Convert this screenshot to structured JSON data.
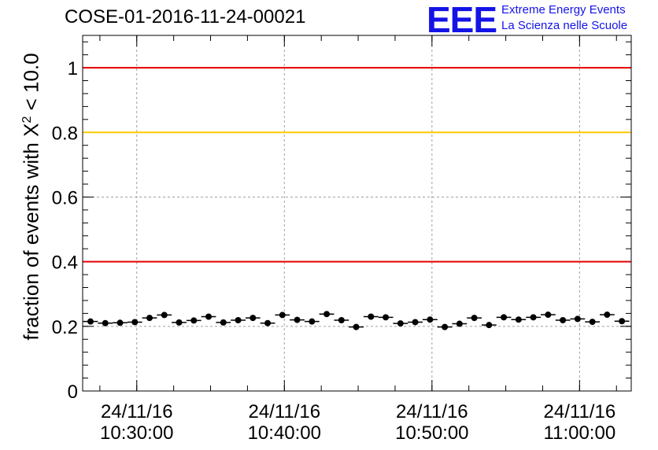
{
  "title": "COSE-01-2016-11-24-00021",
  "logo": {
    "mark": "EEE",
    "line1": "Extreme Energy Events",
    "line2": "La Scienza nelle Scuole"
  },
  "chart_data": {
    "type": "scatter",
    "ylabel": {
      "pre": "fraction of events with X",
      "sup": "2",
      "post": " < 10.0"
    },
    "ylim": [
      0,
      1.1
    ],
    "yticks": [
      0,
      0.2,
      0.4,
      0.6,
      0.8,
      1
    ],
    "ytick_labels": [
      "0",
      "0.2",
      "0.4",
      "0.6",
      "0.8",
      "1"
    ],
    "xlim": [
      "2016-11-24 10:26:20",
      "2016-11-24 11:03:30"
    ],
    "xticks": [
      {
        "time": "2016-11-24 10:30:00",
        "line1": "24/11/16",
        "line2": "10:30:00"
      },
      {
        "time": "2016-11-24 10:40:00",
        "line1": "24/11/16",
        "line2": "10:40:00"
      },
      {
        "time": "2016-11-24 10:50:00",
        "line1": "24/11/16",
        "line2": "10:50:00"
      },
      {
        "time": "2016-11-24 11:00:00",
        "line1": "24/11/16",
        "line2": "11:00:00"
      }
    ],
    "grid": true,
    "reference_lines": [
      {
        "y": 1.0,
        "color": "#e60000"
      },
      {
        "y": 0.8,
        "color": "#ffc800"
      },
      {
        "y": 0.4,
        "color": "#e60000"
      }
    ],
    "series": [
      {
        "x": [
          "10:26:52",
          "10:27:52",
          "10:28:52",
          "10:29:52",
          "10:30:52",
          "10:31:52",
          "10:32:52",
          "10:33:52",
          "10:34:52",
          "10:35:52",
          "10:36:52",
          "10:37:52",
          "10:38:52",
          "10:39:52",
          "10:40:52",
          "10:41:52",
          "10:42:52",
          "10:43:52",
          "10:44:52",
          "10:45:52",
          "10:46:52",
          "10:47:52",
          "10:48:52",
          "10:49:52",
          "10:50:52",
          "10:51:52",
          "10:52:52",
          "10:53:52",
          "10:54:52",
          "10:55:52",
          "10:56:52",
          "10:57:52",
          "10:58:52",
          "10:59:52",
          "11:00:52",
          "11:01:52",
          "11:02:52"
        ],
        "y": [
          0.215,
          0.21,
          0.211,
          0.213,
          0.226,
          0.235,
          0.212,
          0.218,
          0.23,
          0.212,
          0.219,
          0.226,
          0.21,
          0.235,
          0.22,
          0.215,
          0.238,
          0.219,
          0.198,
          0.23,
          0.228,
          0.209,
          0.213,
          0.221,
          0.198,
          0.208,
          0.226,
          0.204,
          0.228,
          0.221,
          0.228,
          0.236,
          0.219,
          0.223,
          0.214,
          0.236,
          0.216
        ],
        "bin_half_width_seconds": 30,
        "error": 0.008,
        "marker_color": "#000000"
      }
    ]
  }
}
